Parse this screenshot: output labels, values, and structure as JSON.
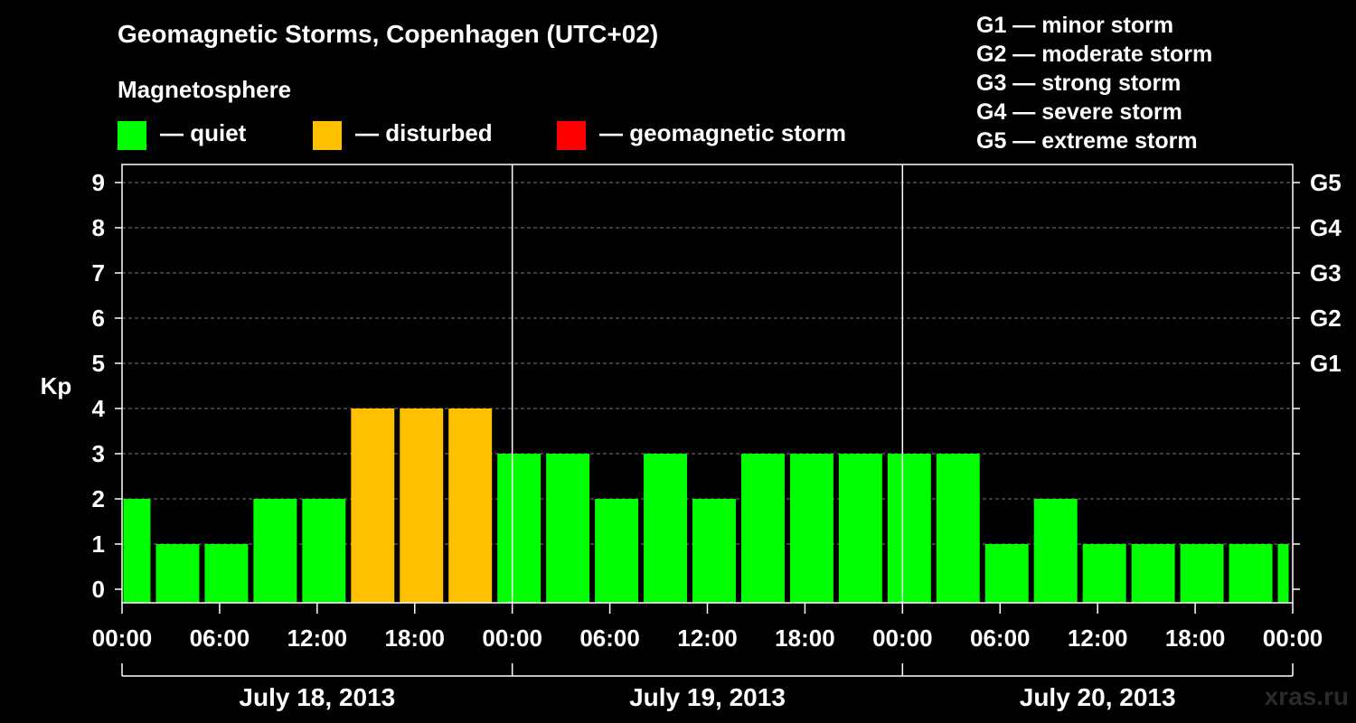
{
  "header": {
    "title": "Geomagnetic Storms, Copenhagen (UTC+02)",
    "magnetosphere_heading": "Magnetosphere"
  },
  "legend": {
    "items": [
      {
        "label": "— quiet",
        "color": "#00ff00"
      },
      {
        "label": "— disturbed",
        "color": "#ffc000"
      },
      {
        "label": "— geomagnetic storm",
        "color": "#ff0000"
      }
    ]
  },
  "storm_levels": [
    {
      "level": "G1",
      "text": "G1 — minor storm"
    },
    {
      "level": "G2",
      "text": "G2 — moderate storm"
    },
    {
      "level": "G3",
      "text": "G3 — strong storm"
    },
    {
      "level": "G4",
      "text": "G4 — severe storm"
    },
    {
      "level": "G5",
      "text": "G5 — extreme storm"
    }
  ],
  "watermark": "xras.ru",
  "chart_data": {
    "type": "bar",
    "ylabel": "Kp",
    "ylim": [
      0,
      9
    ],
    "yticks": [
      0,
      1,
      2,
      3,
      4,
      5,
      6,
      7,
      8,
      9
    ],
    "right_axis_labels": [
      {
        "kp": 5,
        "label": "G1"
      },
      {
        "kp": 6,
        "label": "G2"
      },
      {
        "kp": 7,
        "label": "G3"
      },
      {
        "kp": 8,
        "label": "G4"
      },
      {
        "kp": 9,
        "label": "G5"
      }
    ],
    "grid": true,
    "x_range_hours": [
      0,
      72
    ],
    "x_tick_labels": [
      "00:00",
      "06:00",
      "12:00",
      "18:00",
      "00:00",
      "06:00",
      "12:00",
      "18:00",
      "00:00",
      "06:00",
      "12:00",
      "18:00",
      "00:00"
    ],
    "day_labels": [
      "July 18, 2013",
      "July 19, 2013",
      "July 20, 2013"
    ],
    "series": [
      {
        "values": [
          {
            "start": 0,
            "end": 2,
            "kp": 2,
            "status": "quiet"
          },
          {
            "start": 2,
            "end": 5,
            "kp": 1,
            "status": "quiet"
          },
          {
            "start": 5,
            "end": 8,
            "kp": 1,
            "status": "quiet"
          },
          {
            "start": 8,
            "end": 11,
            "kp": 2,
            "status": "quiet"
          },
          {
            "start": 11,
            "end": 14,
            "kp": 2,
            "status": "quiet"
          },
          {
            "start": 14,
            "end": 17,
            "kp": 4,
            "status": "disturbed"
          },
          {
            "start": 17,
            "end": 20,
            "kp": 4,
            "status": "disturbed"
          },
          {
            "start": 20,
            "end": 23,
            "kp": 4,
            "status": "disturbed"
          },
          {
            "start": 23,
            "end": 26,
            "kp": 3,
            "status": "quiet"
          },
          {
            "start": 26,
            "end": 29,
            "kp": 3,
            "status": "quiet"
          },
          {
            "start": 29,
            "end": 32,
            "kp": 2,
            "status": "quiet"
          },
          {
            "start": 32,
            "end": 35,
            "kp": 3,
            "status": "quiet"
          },
          {
            "start": 35,
            "end": 38,
            "kp": 2,
            "status": "quiet"
          },
          {
            "start": 38,
            "end": 41,
            "kp": 3,
            "status": "quiet"
          },
          {
            "start": 41,
            "end": 44,
            "kp": 3,
            "status": "quiet"
          },
          {
            "start": 44,
            "end": 47,
            "kp": 3,
            "status": "quiet"
          },
          {
            "start": 47,
            "end": 50,
            "kp": 3,
            "status": "quiet"
          },
          {
            "start": 50,
            "end": 53,
            "kp": 3,
            "status": "quiet"
          },
          {
            "start": 53,
            "end": 56,
            "kp": 1,
            "status": "quiet"
          },
          {
            "start": 56,
            "end": 59,
            "kp": 2,
            "status": "quiet"
          },
          {
            "start": 59,
            "end": 62,
            "kp": 1,
            "status": "quiet"
          },
          {
            "start": 62,
            "end": 65,
            "kp": 1,
            "status": "quiet"
          },
          {
            "start": 65,
            "end": 68,
            "kp": 1,
            "status": "quiet"
          },
          {
            "start": 68,
            "end": 71,
            "kp": 1,
            "status": "quiet"
          },
          {
            "start": 71,
            "end": 72,
            "kp": 1,
            "status": "quiet"
          }
        ]
      }
    ]
  }
}
